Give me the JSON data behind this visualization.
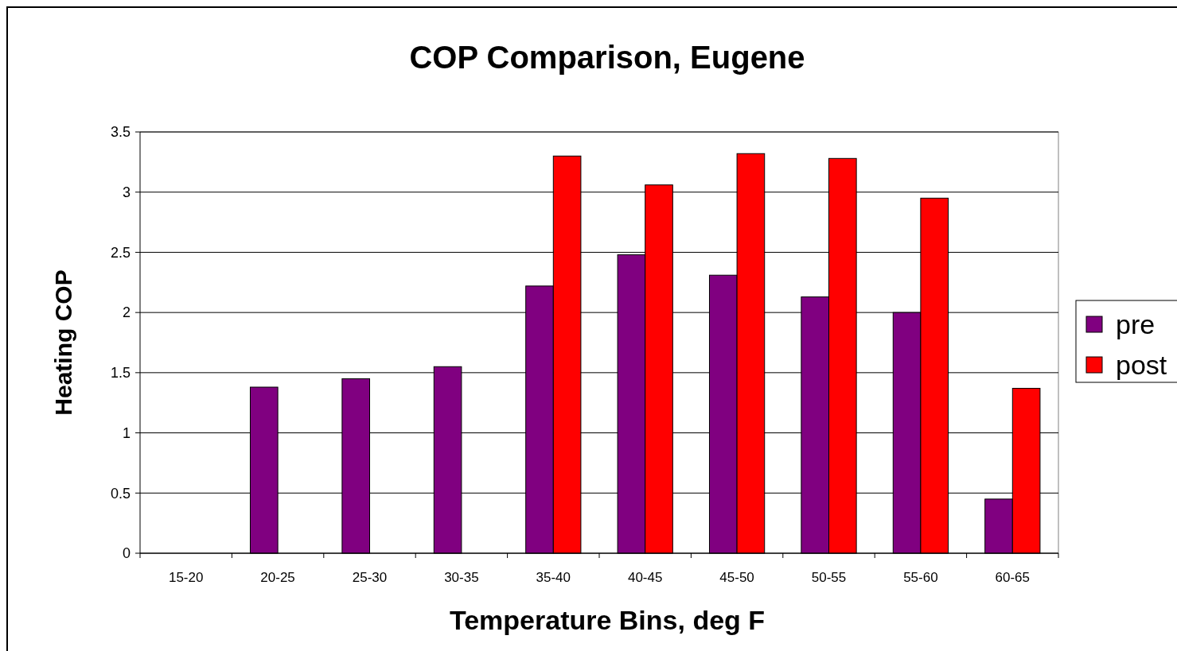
{
  "chart_data": {
    "type": "bar",
    "title": "COP Comparison, Eugene",
    "xlabel": "Temperature Bins, deg F",
    "ylabel": "Heating COP",
    "categories": [
      "15-20",
      "20-25",
      "25-30",
      "30-35",
      "35-40",
      "40-45",
      "45-50",
      "50-55",
      "55-60",
      "60-65"
    ],
    "series": [
      {
        "name": "pre",
        "color": "#800080",
        "values": [
          null,
          1.38,
          1.45,
          1.55,
          2.22,
          2.48,
          2.31,
          2.13,
          2.0,
          0.45
        ]
      },
      {
        "name": "post",
        "color": "#ff0000",
        "values": [
          null,
          null,
          null,
          null,
          3.3,
          3.06,
          3.32,
          3.28,
          2.95,
          1.37
        ]
      }
    ],
    "ylim": [
      0,
      3.5
    ],
    "yticks": [
      0,
      0.5,
      1,
      1.5,
      2,
      2.5,
      3,
      3.5
    ],
    "grid": "y",
    "legend": "right"
  }
}
